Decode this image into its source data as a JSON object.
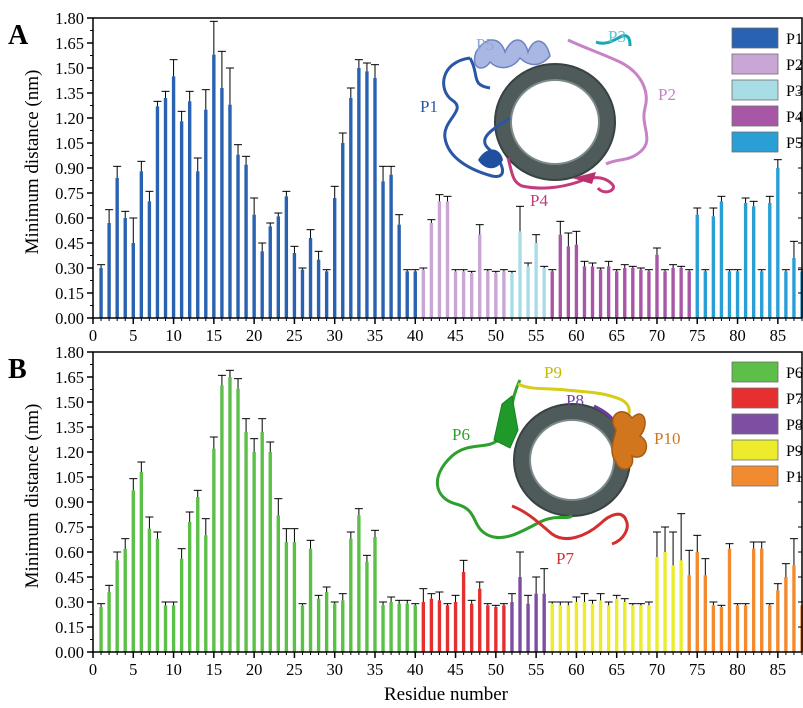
{
  "figure": {
    "xlabel": "Residue number",
    "ylabel": "Minimum distance (nm)"
  },
  "chart_data": [
    {
      "type": "bar",
      "panel_label": "A",
      "xlim": [
        0,
        88
      ],
      "ylim": [
        0,
        1.8
      ],
      "xticks": [
        "0",
        "5",
        "10",
        "15",
        "20",
        "25",
        "30",
        "35",
        "40",
        "45",
        "50",
        "55",
        "60",
        "65",
        "70",
        "75",
        "80",
        "85"
      ],
      "yticks": [
        "0.00",
        "0.15",
        "0.30",
        "0.45",
        "0.60",
        "0.75",
        "0.90",
        "1.05",
        "1.20",
        "1.35",
        "1.50",
        "1.65",
        "1.80"
      ],
      "legend_position": "top-right",
      "series": [
        {
          "name": "P1",
          "color": "#2862b0",
          "x": [
            1,
            2,
            3,
            4,
            5,
            6,
            7,
            8,
            9,
            10,
            11,
            12,
            13,
            14,
            15,
            16,
            17,
            18,
            19,
            20,
            21,
            22,
            23,
            24,
            25,
            26,
            27,
            28,
            29,
            30,
            31,
            32,
            33,
            34,
            35,
            36,
            37,
            38,
            39,
            40
          ],
          "values": [
            0.3,
            0.57,
            0.84,
            0.6,
            0.45,
            0.88,
            0.7,
            1.27,
            1.32,
            1.45,
            1.18,
            1.3,
            0.88,
            1.25,
            1.58,
            1.38,
            1.28,
            0.98,
            0.92,
            0.62,
            0.4,
            0.55,
            0.61,
            0.73,
            0.39,
            0.29,
            0.48,
            0.35,
            0.28,
            0.72,
            1.05,
            1.32,
            1.5,
            1.48,
            1.44,
            0.82,
            0.86,
            0.56,
            0.28,
            0.28
          ],
          "errors": [
            0.02,
            0.08,
            0.07,
            0.04,
            0.15,
            0.06,
            0.06,
            0.03,
            0.04,
            0.1,
            0.06,
            0.06,
            0.08,
            0.12,
            0.2,
            0.22,
            0.22,
            0.06,
            0.05,
            0.1,
            0.05,
            0.02,
            0.02,
            0.03,
            0.04,
            0.01,
            0.05,
            0.05,
            0.01,
            0.07,
            0.06,
            0.06,
            0.05,
            0.05,
            0.08,
            0.09,
            0.05,
            0.06,
            0.01,
            0.01
          ]
        },
        {
          "name": "P2",
          "color": "#c9a6d6",
          "x": [
            41,
            42,
            43,
            44,
            45,
            46,
            47,
            48,
            49,
            50,
            51
          ],
          "values": [
            0.29,
            0.57,
            0.7,
            0.7,
            0.28,
            0.28,
            0.27,
            0.5,
            0.28,
            0.27,
            0.28
          ],
          "errors": [
            0.01,
            0.02,
            0.04,
            0.03,
            0.01,
            0.01,
            0.01,
            0.06,
            0.01,
            0.01,
            0.01
          ]
        },
        {
          "name": "P3",
          "color": "#a8dde6",
          "x": [
            52,
            53,
            54,
            55,
            56
          ],
          "values": [
            0.27,
            0.52,
            0.31,
            0.45,
            0.3
          ],
          "errors": [
            0.01,
            0.15,
            0.02,
            0.05,
            0.01
          ]
        },
        {
          "name": "P4",
          "color": "#a857a6",
          "x": [
            57,
            58,
            59,
            60,
            61,
            62,
            63,
            64,
            65,
            66,
            67,
            68,
            69,
            70,
            71,
            72,
            73,
            74
          ],
          "values": [
            0.28,
            0.5,
            0.43,
            0.44,
            0.31,
            0.31,
            0.29,
            0.31,
            0.28,
            0.3,
            0.3,
            0.29,
            0.28,
            0.38,
            0.28,
            0.3,
            0.3,
            0.28
          ],
          "errors": [
            0.01,
            0.08,
            0.08,
            0.08,
            0.03,
            0.02,
            0.01,
            0.03,
            0.01,
            0.02,
            0.01,
            0.01,
            0.01,
            0.04,
            0.01,
            0.02,
            0.01,
            0.01
          ]
        },
        {
          "name": "P5",
          "color": "#2a9fd6",
          "x": [
            75,
            76,
            77,
            78,
            79,
            80,
            81,
            82,
            83,
            84,
            85,
            86,
            87,
            88
          ],
          "values": [
            0.62,
            0.28,
            0.61,
            0.7,
            0.28,
            0.28,
            0.69,
            0.67,
            0.28,
            0.69,
            0.9,
            0.28,
            0.36,
            0.28
          ],
          "errors": [
            0.04,
            0.01,
            0.05,
            0.03,
            0.01,
            0.01,
            0.03,
            0.03,
            0.01,
            0.04,
            0.05,
            0.01,
            0.1,
            0.01
          ]
        }
      ]
    },
    {
      "type": "bar",
      "panel_label": "B",
      "xlim": [
        0,
        88
      ],
      "ylim": [
        0,
        1.8
      ],
      "xticks": [
        "0",
        "5",
        "10",
        "15",
        "20",
        "25",
        "30",
        "35",
        "40",
        "45",
        "50",
        "55",
        "60",
        "65",
        "70",
        "75",
        "80",
        "85"
      ],
      "yticks": [
        "0.00",
        "0.15",
        "0.30",
        "0.45",
        "0.60",
        "0.75",
        "0.90",
        "1.05",
        "1.20",
        "1.35",
        "1.50",
        "1.65",
        "1.80"
      ],
      "legend_position": "top-right",
      "series": [
        {
          "name": "P6",
          "color": "#5cbf48",
          "x": [
            1,
            2,
            3,
            4,
            5,
            6,
            7,
            8,
            9,
            10,
            11,
            12,
            13,
            14,
            15,
            16,
            17,
            18,
            19,
            20,
            21,
            22,
            23,
            24,
            25,
            26,
            27,
            28,
            29,
            30,
            31,
            32,
            33,
            34,
            35,
            36,
            37,
            38,
            39,
            40
          ],
          "values": [
            0.27,
            0.36,
            0.55,
            0.62,
            0.97,
            1.08,
            0.74,
            0.68,
            0.28,
            0.28,
            0.56,
            0.78,
            0.93,
            0.7,
            1.22,
            1.6,
            1.65,
            1.58,
            1.32,
            1.2,
            1.32,
            1.2,
            0.82,
            0.66,
            0.66,
            0.28,
            0.62,
            0.32,
            0.36,
            0.29,
            0.31,
            0.68,
            0.82,
            0.54,
            0.69,
            0.28,
            0.3,
            0.29,
            0.29,
            0.28
          ],
          "errors": [
            0.02,
            0.04,
            0.05,
            0.06,
            0.07,
            0.06,
            0.07,
            0.04,
            0.02,
            0.02,
            0.06,
            0.06,
            0.04,
            0.1,
            0.07,
            0.06,
            0.04,
            0.06,
            0.08,
            0.08,
            0.08,
            0.06,
            0.1,
            0.08,
            0.08,
            0.01,
            0.05,
            0.02,
            0.03,
            0.01,
            0.04,
            0.04,
            0.04,
            0.04,
            0.04,
            0.02,
            0.03,
            0.02,
            0.02,
            0.01
          ]
        },
        {
          "name": "P7",
          "color": "#e63030",
          "x": [
            41,
            42,
            43,
            44,
            45,
            46,
            47,
            48,
            49,
            50,
            51
          ],
          "values": [
            0.3,
            0.32,
            0.31,
            0.28,
            0.3,
            0.48,
            0.29,
            0.38,
            0.28,
            0.27,
            0.28
          ],
          "errors": [
            0.08,
            0.03,
            0.05,
            0.01,
            0.04,
            0.07,
            0.02,
            0.04,
            0.01,
            0.01,
            0.01
          ]
        },
        {
          "name": "P8",
          "color": "#7e4ea3",
          "x": [
            52,
            53,
            54,
            55,
            56
          ],
          "values": [
            0.3,
            0.45,
            0.29,
            0.35,
            0.35
          ],
          "errors": [
            0.05,
            0.15,
            0.05,
            0.1,
            0.15
          ]
        },
        {
          "name": "P9",
          "color": "#ecec2c",
          "x": [
            57,
            58,
            59,
            60,
            61,
            62,
            63,
            64,
            65,
            66,
            67,
            68,
            69,
            70,
            71,
            72,
            73
          ],
          "values": [
            0.29,
            0.28,
            0.28,
            0.3,
            0.3,
            0.29,
            0.31,
            0.28,
            0.32,
            0.3,
            0.28,
            0.28,
            0.28,
            0.57,
            0.6,
            0.52,
            0.55
          ],
          "errors": [
            0.01,
            0.02,
            0.02,
            0.03,
            0.05,
            0.02,
            0.04,
            0.02,
            0.02,
            0.02,
            0.01,
            0.01,
            0.02,
            0.15,
            0.15,
            0.2,
            0.28
          ]
        },
        {
          "name": "P10",
          "color": "#f28a30",
          "x": [
            74,
            75,
            76,
            77,
            78,
            79,
            80,
            81,
            82,
            83,
            84,
            85,
            86,
            87,
            88
          ],
          "values": [
            0.46,
            0.6,
            0.46,
            0.28,
            0.27,
            0.62,
            0.28,
            0.28,
            0.62,
            0.62,
            0.28,
            0.37,
            0.45,
            0.52,
            0.28
          ],
          "errors": [
            0.15,
            0.1,
            0.1,
            0.02,
            0.01,
            0.03,
            0.01,
            0.01,
            0.04,
            0.04,
            0.01,
            0.04,
            0.08,
            0.16,
            0.02
          ]
        }
      ]
    }
  ],
  "insets": [
    {
      "labels": [
        {
          "text": "P1",
          "color": "#2a56a6"
        },
        {
          "text": "P5",
          "color": "#8fa6d6"
        },
        {
          "text": "P3",
          "color": "#62c2d6"
        },
        {
          "text": "P2",
          "color": "#c882c6"
        },
        {
          "text": "P4",
          "color": "#c43a7c"
        }
      ]
    },
    {
      "labels": [
        {
          "text": "P9",
          "color": "#c7b800"
        },
        {
          "text": "P8",
          "color": "#6b3fa0"
        },
        {
          "text": "P6",
          "color": "#2ea02e"
        },
        {
          "text": "P10",
          "color": "#d2761e"
        },
        {
          "text": "P7",
          "color": "#d23030"
        }
      ]
    }
  ]
}
